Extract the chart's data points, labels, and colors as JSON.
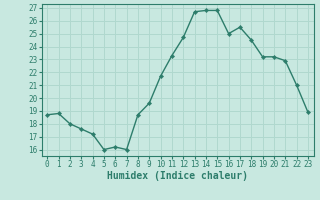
{
  "xlabel": "Humidex (Indice chaleur)",
  "x": [
    0,
    1,
    2,
    3,
    4,
    5,
    6,
    7,
    8,
    9,
    10,
    11,
    12,
    13,
    14,
    15,
    16,
    17,
    18,
    19,
    20,
    21,
    22,
    23
  ],
  "y": [
    18.7,
    18.8,
    18.0,
    17.6,
    17.2,
    16.0,
    16.2,
    16.0,
    18.7,
    19.6,
    21.7,
    23.3,
    24.7,
    26.7,
    26.8,
    26.8,
    25.0,
    25.5,
    24.5,
    23.2,
    23.2,
    22.9,
    21.0,
    18.9
  ],
  "line_color": "#2d7d6b",
  "marker": "D",
  "marker_size": 2.2,
  "line_width": 1.0,
  "bg_color": "#c8e8e0",
  "grid_color": "#b0d8ce",
  "text_color": "#2d7d6b",
  "ylim_min": 15.5,
  "ylim_max": 27.3,
  "xlim_min": -0.5,
  "xlim_max": 23.5,
  "yticks": [
    16,
    17,
    18,
    19,
    20,
    21,
    22,
    23,
    24,
    25,
    26,
    27
  ],
  "xticks": [
    0,
    1,
    2,
    3,
    4,
    5,
    6,
    7,
    8,
    9,
    10,
    11,
    12,
    13,
    14,
    15,
    16,
    17,
    18,
    19,
    20,
    21,
    22,
    23
  ],
  "tick_fontsize": 5.5,
  "label_fontsize": 7.0
}
